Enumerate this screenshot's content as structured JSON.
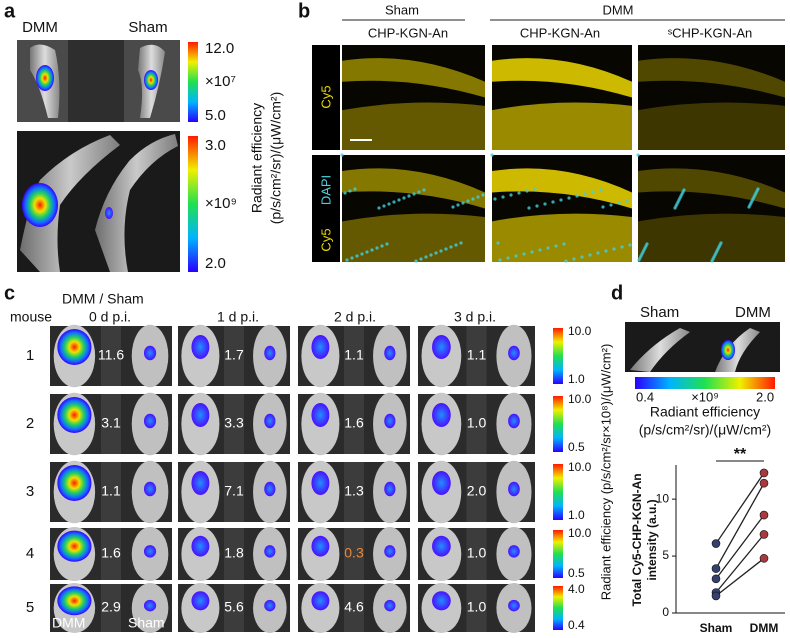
{
  "panel_a": {
    "label": "a",
    "columns": [
      "DMM",
      "Sham"
    ],
    "colorbars": [
      {
        "max": "12.0",
        "scale": "×10⁷",
        "min": "5.0"
      },
      {
        "max": "3.0",
        "scale": "×10⁹",
        "min": "2.0"
      }
    ],
    "colorbar_title": [
      "Radiant efficiency",
      "(p/s/cm²/sr)/(μW/cm²)"
    ]
  },
  "panel_b": {
    "label": "b",
    "groups": [
      "Sham",
      "DMM"
    ],
    "columns": [
      "CHP-KGN-An",
      "CHP-KGN-An",
      "ˢCHP-KGN-An"
    ],
    "row_labels": [
      [
        "Cy5"
      ],
      [
        "DAPI",
        "Cy5"
      ]
    ]
  },
  "panel_c": {
    "label": "c",
    "header": "DMM / Sham",
    "row_header": "mouse",
    "timepoints": [
      "0 d p.i.",
      "1 d p.i.",
      "2 d p.i.",
      "3 d p.i."
    ],
    "rows": [
      {
        "mouse": "1",
        "ratios": [
          "11.6",
          "1.7",
          "1.1",
          "1.1"
        ],
        "ratio_colors": [
          "#ffffff",
          "#ffffff",
          "#ffffff",
          "#ffffff"
        ],
        "colorbar": [
          "10.0",
          "1.0"
        ]
      },
      {
        "mouse": "2",
        "ratios": [
          "3.1",
          "3.3",
          "1.6",
          "1.0"
        ],
        "ratio_colors": [
          "#ffffff",
          "#ffffff",
          "#ffffff",
          "#ffffff"
        ],
        "colorbar": [
          "10.0",
          "0.5"
        ]
      },
      {
        "mouse": "3",
        "ratios": [
          "1.1",
          "7.1",
          "1.3",
          "2.0"
        ],
        "ratio_colors": [
          "#ffffff",
          "#ffffff",
          "#ffffff",
          "#ffffff"
        ],
        "colorbar": [
          "10.0",
          "1.0"
        ]
      },
      {
        "mouse": "4",
        "ratios": [
          "1.6",
          "1.8",
          "0.3",
          "1.0"
        ],
        "ratio_colors": [
          "#ffffff",
          "#ffffff",
          "#e8883a",
          "#ffffff"
        ],
        "colorbar": [
          "10.0",
          "0.5"
        ]
      },
      {
        "mouse": "5",
        "ratios": [
          "2.9",
          "5.6",
          "4.6",
          "1.0"
        ],
        "ratio_colors": [
          "#ffffff",
          "#ffffff",
          "#ffffff",
          "#ffffff"
        ],
        "colorbar": [
          "4.0",
          "0.4"
        ]
      }
    ],
    "image_labels": [
      "DMM",
      "Sham"
    ],
    "colorbar_title": "Radiant efficiency (p/s/cm²/sr×10⁸)/(μW/cm²)"
  },
  "panel_d": {
    "label": "d",
    "columns": [
      "Sham",
      "DMM"
    ],
    "colorbar": {
      "min": "0.4",
      "scale": "×10⁹",
      "max": "2.0"
    },
    "colorbar_title": [
      "Radiant efficiency",
      "(p/s/cm²/sr)/(μW/cm²)"
    ]
  },
  "chart_data": {
    "type": "paired-dot",
    "ylabel": [
      "Total Cy5-CHP-KGN-An",
      "intensity (a.u.)"
    ],
    "categories": [
      "Sham",
      "DMM"
    ],
    "colors": [
      "#34406e",
      "#a8393f"
    ],
    "line_color": "#222222",
    "series": [
      {
        "values": [
          6.1,
          12.3
        ]
      },
      {
        "values": [
          3.9,
          11.4
        ]
      },
      {
        "values": [
          3.0,
          8.6
        ]
      },
      {
        "values": [
          1.8,
          6.9
        ]
      },
      {
        "values": [
          1.5,
          4.8
        ]
      }
    ],
    "ylim": [
      0,
      13
    ],
    "yticks": [
      0,
      5,
      10
    ],
    "annotation": "**"
  }
}
